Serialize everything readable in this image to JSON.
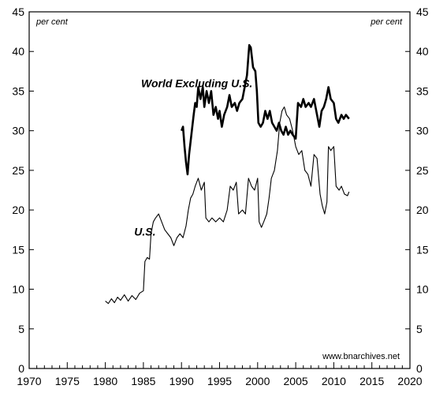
{
  "chart_data": {
    "type": "line",
    "y_unit_left": "per cent",
    "y_unit_right": "per cent",
    "source": "www.bnarchives.net",
    "xlim": [
      1970,
      2020
    ],
    "ylim": [
      0,
      45
    ],
    "x_ticks": [
      1970,
      1975,
      1980,
      1985,
      1990,
      1995,
      2000,
      2005,
      2010,
      2015,
      2020
    ],
    "y_ticks": [
      0,
      5,
      10,
      15,
      20,
      25,
      30,
      35,
      40,
      45
    ],
    "grid": false,
    "series": [
      {
        "name": "World Excluding U.S.",
        "line_weight": "bold",
        "points": [
          [
            1990.0,
            30.0
          ],
          [
            1990.2,
            30.5
          ],
          [
            1990.4,
            28.0
          ],
          [
            1990.6,
            26.0
          ],
          [
            1990.8,
            24.5
          ],
          [
            1991.0,
            27.0
          ],
          [
            1991.3,
            29.5
          ],
          [
            1991.6,
            32.0
          ],
          [
            1991.8,
            33.5
          ],
          [
            1992.0,
            33.0
          ],
          [
            1992.2,
            35.5
          ],
          [
            1992.5,
            34.0
          ],
          [
            1992.8,
            35.5
          ],
          [
            1993.0,
            33.0
          ],
          [
            1993.3,
            35.0
          ],
          [
            1993.6,
            33.5
          ],
          [
            1993.9,
            35.0
          ],
          [
            1994.2,
            32.0
          ],
          [
            1994.5,
            33.0
          ],
          [
            1994.8,
            31.5
          ],
          [
            1995.0,
            32.5
          ],
          [
            1995.3,
            30.5
          ],
          [
            1995.6,
            32.0
          ],
          [
            1996.0,
            33.0
          ],
          [
            1996.3,
            34.5
          ],
          [
            1996.6,
            33.0
          ],
          [
            1997.0,
            33.5
          ],
          [
            1997.3,
            32.5
          ],
          [
            1997.6,
            33.5
          ],
          [
            1998.0,
            34.0
          ],
          [
            1998.3,
            35.5
          ],
          [
            1998.6,
            37.0
          ],
          [
            1998.9,
            40.8
          ],
          [
            1999.1,
            40.5
          ],
          [
            1999.4,
            38.0
          ],
          [
            1999.7,
            37.5
          ],
          [
            1999.9,
            35.0
          ],
          [
            2000.1,
            31.0
          ],
          [
            2000.4,
            30.5
          ],
          [
            2000.7,
            31.0
          ],
          [
            2001.0,
            32.5
          ],
          [
            2001.3,
            31.5
          ],
          [
            2001.6,
            32.5
          ],
          [
            2001.9,
            31.0
          ],
          [
            2002.2,
            30.5
          ],
          [
            2002.5,
            30.0
          ],
          [
            2002.8,
            31.0
          ],
          [
            2003.1,
            30.0
          ],
          [
            2003.4,
            29.5
          ],
          [
            2003.7,
            30.5
          ],
          [
            2004.0,
            29.5
          ],
          [
            2004.3,
            30.0
          ],
          [
            2004.6,
            29.5
          ],
          [
            2005.0,
            29.0
          ],
          [
            2005.3,
            33.5
          ],
          [
            2005.7,
            33.0
          ],
          [
            2006.0,
            34.0
          ],
          [
            2006.3,
            33.0
          ],
          [
            2006.7,
            33.5
          ],
          [
            2007.0,
            33.0
          ],
          [
            2007.4,
            34.0
          ],
          [
            2007.8,
            32.0
          ],
          [
            2008.1,
            30.5
          ],
          [
            2008.4,
            32.5
          ],
          [
            2008.7,
            33.0
          ],
          [
            2009.0,
            34.0
          ],
          [
            2009.3,
            35.5
          ],
          [
            2009.6,
            34.0
          ],
          [
            2010.0,
            33.5
          ],
          [
            2010.3,
            31.5
          ],
          [
            2010.6,
            31.0
          ],
          [
            2011.0,
            32.0
          ],
          [
            2011.3,
            31.5
          ],
          [
            2011.6,
            32.0
          ],
          [
            2012.0,
            31.5
          ]
        ]
      },
      {
        "name": "U.S.",
        "line_weight": "thin",
        "points": [
          [
            1980.0,
            8.5
          ],
          [
            1980.4,
            8.2
          ],
          [
            1980.8,
            8.8
          ],
          [
            1981.2,
            8.3
          ],
          [
            1981.6,
            9.0
          ],
          [
            1982.0,
            8.6
          ],
          [
            1982.5,
            9.3
          ],
          [
            1983.0,
            8.5
          ],
          [
            1983.5,
            9.2
          ],
          [
            1984.0,
            8.7
          ],
          [
            1984.5,
            9.5
          ],
          [
            1985.0,
            9.8
          ],
          [
            1985.2,
            13.5
          ],
          [
            1985.5,
            14.0
          ],
          [
            1985.8,
            13.8
          ],
          [
            1986.0,
            17.0
          ],
          [
            1986.3,
            18.5
          ],
          [
            1986.6,
            19.0
          ],
          [
            1987.0,
            19.5
          ],
          [
            1987.4,
            18.5
          ],
          [
            1987.8,
            17.5
          ],
          [
            1988.2,
            17.0
          ],
          [
            1988.6,
            16.5
          ],
          [
            1989.0,
            15.5
          ],
          [
            1989.4,
            16.5
          ],
          [
            1989.8,
            17.0
          ],
          [
            1990.2,
            16.5
          ],
          [
            1990.6,
            18.0
          ],
          [
            1990.9,
            20.0
          ],
          [
            1991.2,
            21.5
          ],
          [
            1991.5,
            22.0
          ],
          [
            1991.8,
            23.0
          ],
          [
            1992.2,
            24.0
          ],
          [
            1992.6,
            22.5
          ],
          [
            1993.0,
            23.5
          ],
          [
            1993.2,
            19.0
          ],
          [
            1993.6,
            18.5
          ],
          [
            1994.0,
            19.0
          ],
          [
            1994.5,
            18.5
          ],
          [
            1995.0,
            19.0
          ],
          [
            1995.5,
            18.5
          ],
          [
            1996.0,
            20.0
          ],
          [
            1996.4,
            23.0
          ],
          [
            1996.8,
            22.5
          ],
          [
            1997.2,
            23.5
          ],
          [
            1997.5,
            19.5
          ],
          [
            1998.0,
            20.0
          ],
          [
            1998.4,
            19.5
          ],
          [
            1998.8,
            24.0
          ],
          [
            1999.2,
            23.0
          ],
          [
            1999.6,
            22.5
          ],
          [
            2000.0,
            24.0
          ],
          [
            2000.2,
            18.5
          ],
          [
            2000.5,
            17.8
          ],
          [
            2000.8,
            18.5
          ],
          [
            2001.2,
            19.5
          ],
          [
            2001.5,
            21.5
          ],
          [
            2001.8,
            24.0
          ],
          [
            2002.2,
            25.0
          ],
          [
            2002.6,
            27.5
          ],
          [
            2002.9,
            31.0
          ],
          [
            2003.2,
            32.5
          ],
          [
            2003.5,
            33.0
          ],
          [
            2003.8,
            32.0
          ],
          [
            2004.2,
            31.5
          ],
          [
            2004.6,
            30.0
          ],
          [
            2005.0,
            28.0
          ],
          [
            2005.4,
            27.0
          ],
          [
            2005.8,
            27.5
          ],
          [
            2006.2,
            25.0
          ],
          [
            2006.6,
            24.5
          ],
          [
            2007.0,
            23.0
          ],
          [
            2007.4,
            27.0
          ],
          [
            2007.8,
            26.5
          ],
          [
            2008.2,
            22.0
          ],
          [
            2008.5,
            20.5
          ],
          [
            2008.8,
            19.5
          ],
          [
            2009.1,
            21.0
          ],
          [
            2009.3,
            28.0
          ],
          [
            2009.6,
            27.5
          ],
          [
            2010.0,
            28.0
          ],
          [
            2010.3,
            23.0
          ],
          [
            2010.7,
            22.5
          ],
          [
            2011.0,
            23.0
          ],
          [
            2011.4,
            22.0
          ],
          [
            2011.8,
            21.8
          ],
          [
            2012.0,
            22.3
          ]
        ]
      }
    ],
    "annotations": [
      {
        "text": "World Excluding U.S.",
        "x": 1984.7,
        "y": 35.5
      },
      {
        "text": "U.S.",
        "x": 1983.8,
        "y": 16.8
      }
    ]
  }
}
